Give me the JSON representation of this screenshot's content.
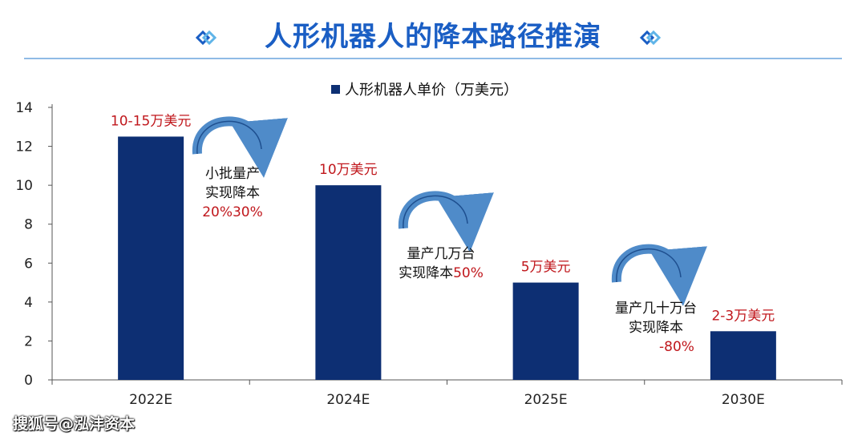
{
  "title": "人形机器人的降本路径推演",
  "watermark": "搜狐号@泓沣资本",
  "colors": {
    "title": "#1a5ec4",
    "bar": "#0d2f73",
    "label_red": "#c0171c",
    "arrow": "#3d7fc4",
    "axis": "#555555"
  },
  "chart_data": {
    "type": "bar",
    "legend": "人形机器人单价（万美元）",
    "categories": [
      "2022E",
      "2024E",
      "2025E",
      "2030E"
    ],
    "values": [
      12.5,
      10,
      5,
      2.5
    ],
    "bar_labels": [
      "10-15万美元",
      "10万美元",
      "5万美元",
      "2-3万美元"
    ],
    "ylim": [
      0,
      14
    ],
    "yticks": [
      0,
      2,
      4,
      6,
      8,
      10,
      12,
      14
    ],
    "grid": false,
    "annotations": [
      {
        "lines": [
          "小批量产",
          "实现降本"
        ],
        "highlight": "20%30%"
      },
      {
        "lines": [
          "量产几万台",
          "实现降本"
        ],
        "highlight": "50%"
      },
      {
        "lines": [
          "量产几十万台",
          "实现降本"
        ],
        "highlight": "-80%"
      }
    ]
  }
}
